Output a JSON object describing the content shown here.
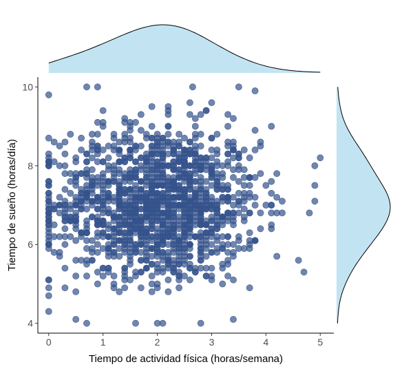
{
  "chart_data": {
    "type": "scatter",
    "title": "",
    "xlabel": "Tiempo de actividad física (horas/semana)",
    "ylabel": "Tiempo de sueño (horas/día)",
    "xlim": [
      -0.2,
      5.25
    ],
    "ylim": [
      3.75,
      10.25
    ],
    "xticks": [
      0,
      1,
      2,
      3,
      4,
      5
    ],
    "yticks": [
      4,
      6,
      8,
      10
    ],
    "grid": false,
    "legend": "none",
    "point_color": "#35528b",
    "point_opacity": 0.7,
    "density_fill": "#c2e4f2",
    "density_stroke": "#000000",
    "marginals": [
      "top density of x",
      "right density of y"
    ],
    "points_highlighted": [
      {
        "x": 0.7,
        "y": 10.0
      },
      {
        "x": 0.9,
        "y": 10.0
      },
      {
        "x": 2.65,
        "y": 10.0
      },
      {
        "x": 3.5,
        "y": 10.0
      },
      {
        "x": 0.0,
        "y": 9.8
      },
      {
        "x": 3.8,
        "y": 9.9
      },
      {
        "x": 0.0,
        "y": 4.3
      },
      {
        "x": 0.0,
        "y": 4.7
      },
      {
        "x": 0.5,
        "y": 4.1
      },
      {
        "x": 0.7,
        "y": 4.0
      },
      {
        "x": 1.6,
        "y": 4.0
      },
      {
        "x": 2.0,
        "y": 4.0
      },
      {
        "x": 2.1,
        "y": 4.0
      },
      {
        "x": 2.8,
        "y": 4.0
      },
      {
        "x": 3.4,
        "y": 4.1
      },
      {
        "x": 4.6,
        "y": 5.6
      },
      {
        "x": 4.7,
        "y": 5.3
      },
      {
        "x": 4.9,
        "y": 7.5
      },
      {
        "x": 5.0,
        "y": 8.2
      },
      {
        "x": 4.9,
        "y": 8.0
      },
      {
        "x": 4.9,
        "y": 7.1
      },
      {
        "x": 4.8,
        "y": 6.8
      }
    ],
    "n_points_approx": 1500
  }
}
